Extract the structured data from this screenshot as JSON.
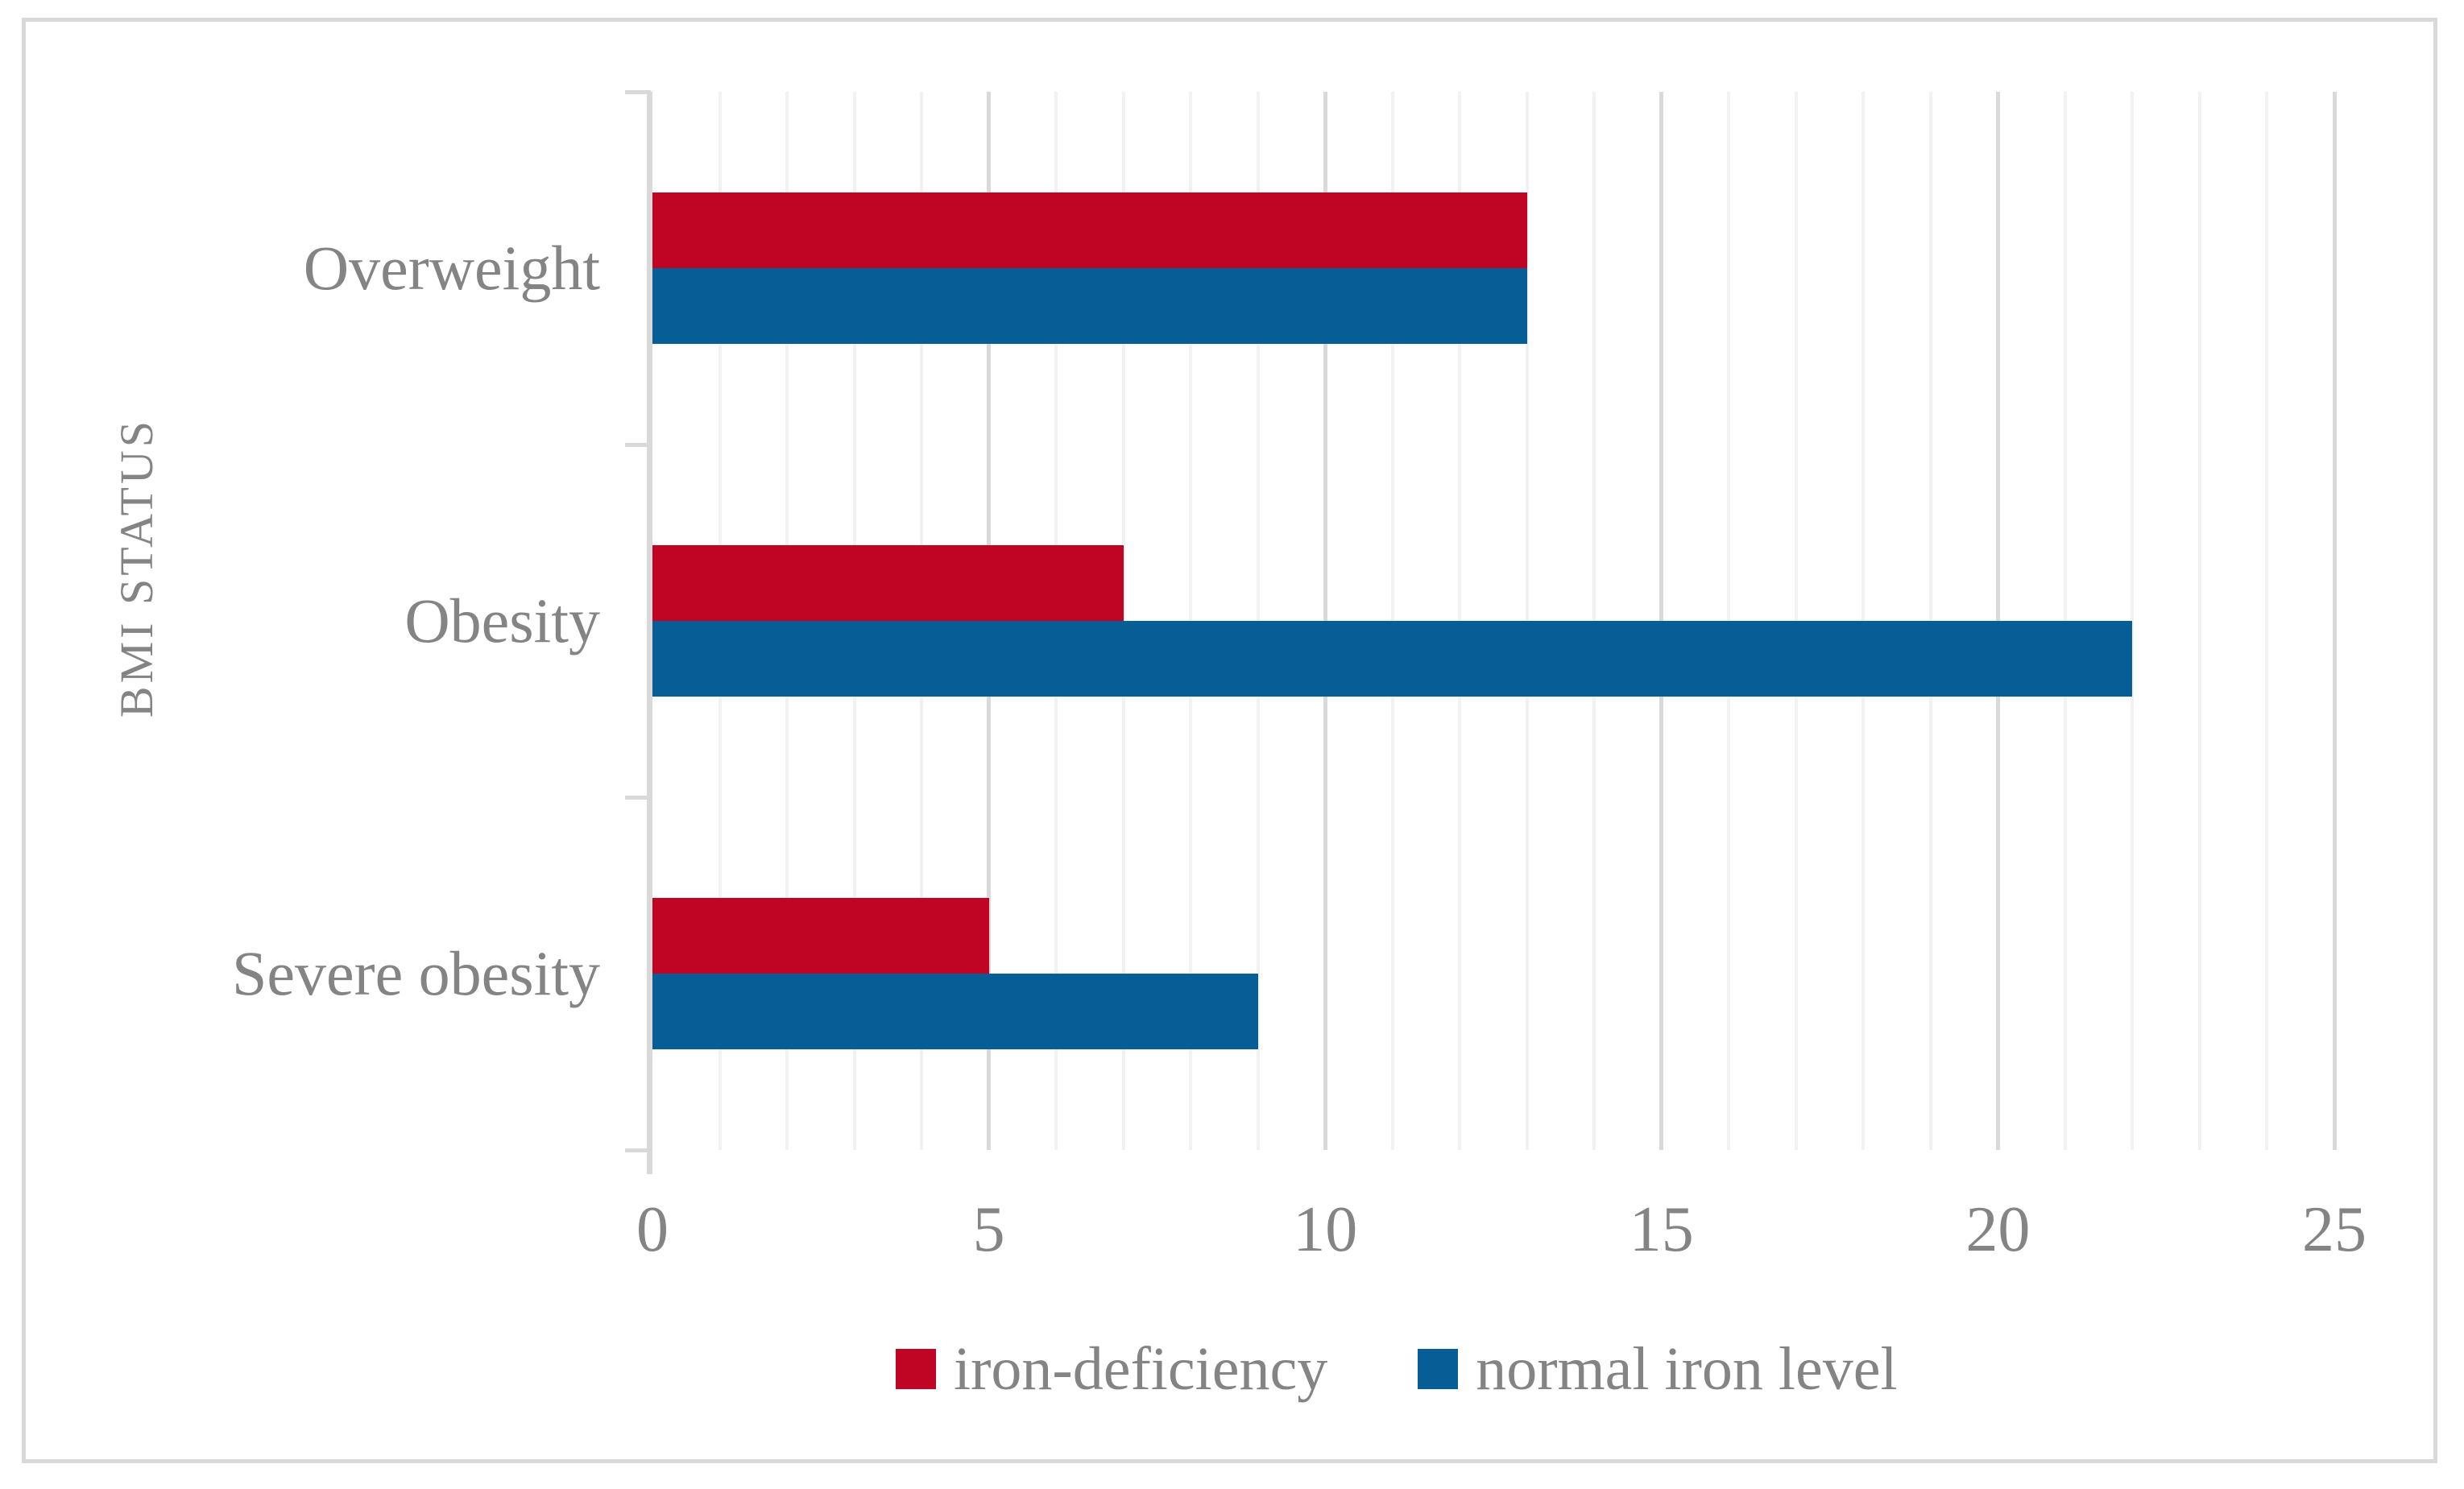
{
  "figure": {
    "background": "#FFFFFF",
    "border_color": "#D9D9D9"
  },
  "styles": {
    "text_color": "#848484",
    "axis_color": "#D9D9D9",
    "major_grid_color": "#D9D9D9",
    "minor_grid_color": "#F2F2F2"
  },
  "chart_data": {
    "type": "bar",
    "orientation": "horizontal",
    "title": "",
    "categories": [
      "Overweight",
      "Obesity",
      "Severe obesity"
    ],
    "series": [
      {
        "name": "iron-deficiency",
        "color": "#C00423",
        "values": [
          13,
          7,
          5
        ]
      },
      {
        "name": "normal iron level",
        "color": "#075E96",
        "values": [
          13,
          22,
          9
        ]
      }
    ],
    "xlabel": "",
    "ylabel": "BMI STATUS",
    "xlim": [
      0,
      25
    ],
    "x_ticks": [
      0,
      5,
      10,
      15,
      20,
      25
    ],
    "x_minor_unit": 1,
    "grid": {
      "minor_vertical": true,
      "major_vertical": true
    },
    "legend_position": "bottom-center"
  }
}
